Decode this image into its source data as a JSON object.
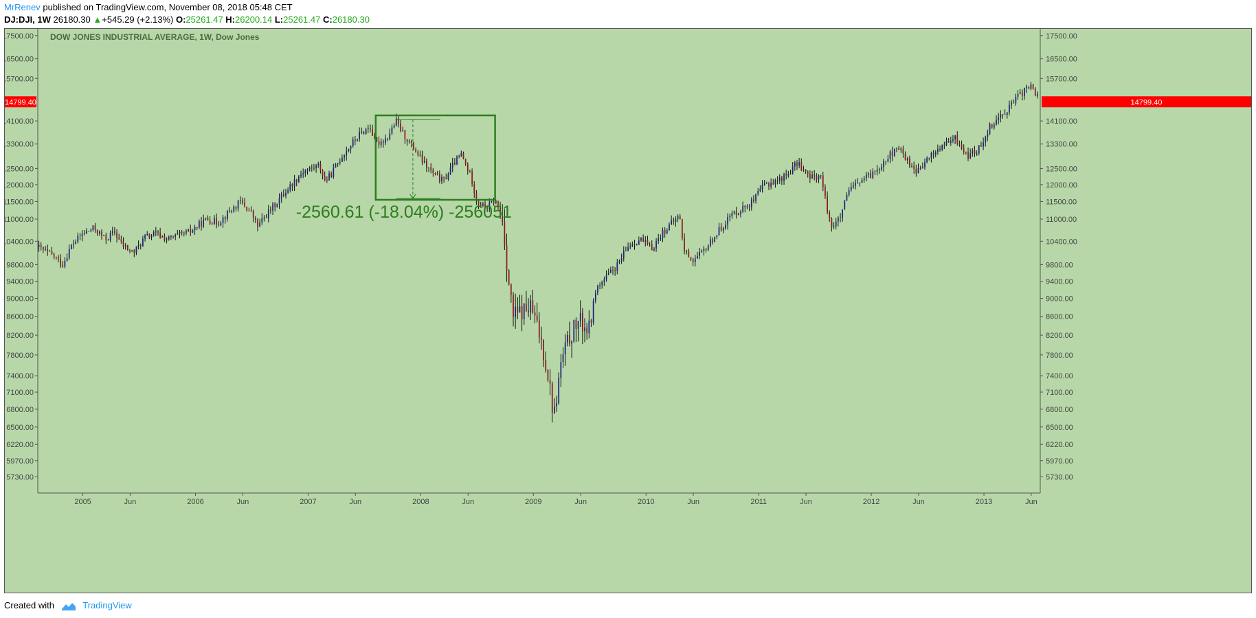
{
  "header": {
    "author": "MrRenev",
    "published_text": "published on TradingView.com, November 08, 2018 05:48 CET",
    "symbol": "DJ:DJI, 1W",
    "last": "26180.30",
    "change": "+545.29 (+2.13%)",
    "open_label": "O:",
    "open": "25261.47",
    "high_label": "H:",
    "high": "26200.14",
    "low_label": "L:",
    "low": "25261.47",
    "close_label": "C:",
    "close": "26180.30"
  },
  "footer": {
    "created_with": "Created with",
    "brand": "TradingView"
  },
  "colors": {
    "background": "#b7d7a8",
    "up_candle": "#1a237e",
    "down_candle": "#8b1a1a",
    "annotation": "#2e7d1e",
    "price_label_bg": "#ff0000",
    "brand": "#2196f3"
  },
  "chart_data": {
    "type": "candlestick",
    "title": "DOW JONES INDUSTRIAL AVERAGE, 1W, Dow Jones",
    "y_ticks": [
      17500,
      16500,
      15700,
      14100,
      13300,
      12500,
      12000,
      11500,
      11000,
      10400,
      9800,
      9400,
      9000,
      8600,
      8200,
      7800,
      7400,
      7100,
      6800,
      6500,
      6220,
      5970,
      5730
    ],
    "y_tick_labels": [
      "17500.00",
      "16500.00",
      "15700.00",
      "14100.00",
      "13300.00",
      "12500.00",
      "12000.00",
      "11500.00",
      "11000.00",
      "10400.00",
      "9800.00",
      "9400.00",
      "9000.00",
      "8600.00",
      "8200.00",
      "7800.00",
      "7400.00",
      "7100.00",
      "6800.00",
      "6500.00",
      "6220.00",
      "5970.00",
      "5730.00"
    ],
    "yscale": "log",
    "ylim": [
      5500,
      17800
    ],
    "x_range": [
      2004.6,
      2013.5
    ],
    "x_ticks": [
      {
        "label": "2005",
        "t": 2005.0
      },
      {
        "label": "Jun",
        "t": 2005.42
      },
      {
        "label": "2006",
        "t": 2006.0
      },
      {
        "label": "Jun",
        "t": 2006.42
      },
      {
        "label": "2007",
        "t": 2007.0
      },
      {
        "label": "Jun",
        "t": 2007.42
      },
      {
        "label": "2008",
        "t": 2008.0
      },
      {
        "label": "Jun",
        "t": 2008.42
      },
      {
        "label": "2009",
        "t": 2009.0
      },
      {
        "label": "Jun",
        "t": 2009.42
      },
      {
        "label": "2010",
        "t": 2010.0
      },
      {
        "label": "Jun",
        "t": 2010.42
      },
      {
        "label": "2011",
        "t": 2011.0
      },
      {
        "label": "Jun",
        "t": 2011.42
      },
      {
        "label": "2012",
        "t": 2012.0
      },
      {
        "label": "Jun",
        "t": 2012.42
      },
      {
        "label": "2013",
        "t": 2013.0
      },
      {
        "label": "Jun",
        "t": 2013.42
      }
    ],
    "current_price": 14799.4,
    "current_price_label": "14799.40",
    "path_points": [
      [
        2004.6,
        10250
      ],
      [
        2004.75,
        10000
      ],
      [
        2004.82,
        9800
      ],
      [
        2004.9,
        10300
      ],
      [
        2005.0,
        10600
      ],
      [
        2005.1,
        10750
      ],
      [
        2005.2,
        10450
      ],
      [
        2005.28,
        10650
      ],
      [
        2005.35,
        10300
      ],
      [
        2005.45,
        10100
      ],
      [
        2005.55,
        10500
      ],
      [
        2005.65,
        10600
      ],
      [
        2005.75,
        10450
      ],
      [
        2005.85,
        10550
      ],
      [
        2005.95,
        10650
      ],
      [
        2006.1,
        11000
      ],
      [
        2006.2,
        10900
      ],
      [
        2006.3,
        11200
      ],
      [
        2006.4,
        11500
      ],
      [
        2006.5,
        11150
      ],
      [
        2006.55,
        10800
      ],
      [
        2006.65,
        11200
      ],
      [
        2006.8,
        11800
      ],
      [
        2006.95,
        12400
      ],
      [
        2007.1,
        12600
      ],
      [
        2007.15,
        12100
      ],
      [
        2007.2,
        12300
      ],
      [
        2007.3,
        12900
      ],
      [
        2007.45,
        13600
      ],
      [
        2007.55,
        13900
      ],
      [
        2007.6,
        13300
      ],
      [
        2007.7,
        13500
      ],
      [
        2007.78,
        14100
      ],
      [
        2007.85,
        13600
      ],
      [
        2007.93,
        13200
      ],
      [
        2008.02,
        12700
      ],
      [
        2008.12,
        12300
      ],
      [
        2008.2,
        12100
      ],
      [
        2008.3,
        12700
      ],
      [
        2008.36,
        12950
      ],
      [
        2008.45,
        12200
      ],
      [
        2008.5,
        11500
      ],
      [
        2008.58,
        11300
      ],
      [
        2008.66,
        11550
      ],
      [
        2008.73,
        10900
      ],
      [
        2008.78,
        9400
      ],
      [
        2008.82,
        8600
      ],
      [
        2008.9,
        8700
      ],
      [
        2008.98,
        8800
      ],
      [
        2009.08,
        8000
      ],
      [
        2009.14,
        7300
      ],
      [
        2009.18,
        6650
      ],
      [
        2009.25,
        7700
      ],
      [
        2009.33,
        8200
      ],
      [
        2009.4,
        8500
      ],
      [
        2009.5,
        8300
      ],
      [
        2009.55,
        9200
      ],
      [
        2009.65,
        9500
      ],
      [
        2009.75,
        9800
      ],
      [
        2009.85,
        10300
      ],
      [
        2009.95,
        10450
      ],
      [
        2010.05,
        10200
      ],
      [
        2010.15,
        10650
      ],
      [
        2010.3,
        11100
      ],
      [
        2010.33,
        10200
      ],
      [
        2010.42,
        9900
      ],
      [
        2010.5,
        10100
      ],
      [
        2010.6,
        10500
      ],
      [
        2010.75,
        11100
      ],
      [
        2010.95,
        11500
      ],
      [
        2011.05,
        12000
      ],
      [
        2011.15,
        12100
      ],
      [
        2011.25,
        12300
      ],
      [
        2011.35,
        12700
      ],
      [
        2011.45,
        12200
      ],
      [
        2011.55,
        12300
      ],
      [
        2011.6,
        11400
      ],
      [
        2011.65,
        10800
      ],
      [
        2011.72,
        11000
      ],
      [
        2011.8,
        11800
      ],
      [
        2011.9,
        12100
      ],
      [
        2012.0,
        12300
      ],
      [
        2012.15,
        12900
      ],
      [
        2012.25,
        13150
      ],
      [
        2012.35,
        12600
      ],
      [
        2012.42,
        12400
      ],
      [
        2012.52,
        12900
      ],
      [
        2012.62,
        13200
      ],
      [
        2012.75,
        13500
      ],
      [
        2012.85,
        12900
      ],
      [
        2012.95,
        13100
      ],
      [
        2013.05,
        13900
      ],
      [
        2013.2,
        14500
      ],
      [
        2013.35,
        15200
      ],
      [
        2013.42,
        15400
      ],
      [
        2013.5,
        14800
      ]
    ],
    "measure_box": {
      "t_start": 2007.6,
      "t_end": 2008.66,
      "price_top": 14300,
      "price_bottom": 11550,
      "measure_t": 2007.93,
      "measure_high": 14150,
      "measure_low": 11590
    },
    "annotation_text": "-2560.61 (-18.04%) -256051"
  }
}
